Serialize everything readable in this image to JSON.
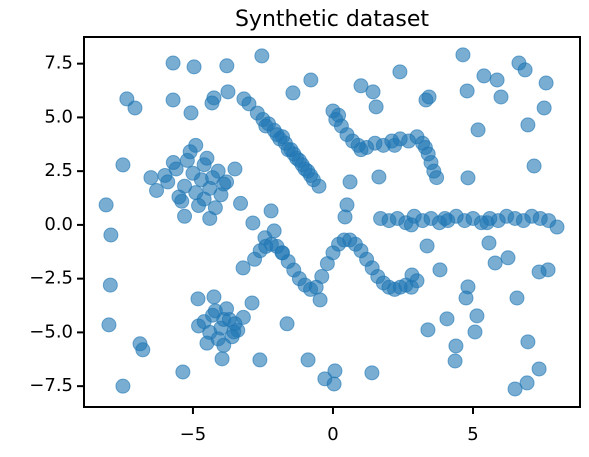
{
  "chart_data": {
    "type": "scatter",
    "title": "Synthetic dataset",
    "color": "#1f77b4",
    "x": [
      -8.1,
      -7.93,
      -7.95,
      -8.0,
      -7.5,
      -7.36,
      -7.07,
      -7.5,
      -6.89,
      -6.79,
      -5.71,
      -4.96,
      -3.79,
      -2.54,
      -5.71,
      -5.07,
      -4.32,
      -4.25,
      -3.75,
      -3.18,
      -3.0,
      -5.36,
      -4.82,
      -4.25,
      -3.96,
      -3.54,
      -2.61,
      -2.89,
      -1.82,
      -1.64,
      -0.89,
      -0.29,
      0.04,
      0.07,
      1.39,
      -0.79,
      -1.43,
      0.61,
      0.5,
      0.43,
      1.0,
      1.43,
      1.54,
      2.39,
      3.32,
      3.43,
      4.64,
      4.79,
      5.39,
      5.86,
      6.0,
      6.64,
      6.86,
      7.61,
      7.54,
      6.96,
      5.18,
      7.18,
      4.82,
      1.64,
      8.0,
      7.68,
      7.36,
      7.36,
      6.93,
      6.5,
      6.96,
      6.57,
      5.14,
      5.07,
      4.39,
      4.36,
      3.39,
      3.82,
      4.82,
      4.75,
      4.07,
      5.79,
      6.25,
      5.57,
      3.36,
      2.82,
      -2.21,
      -2.43,
      -2.1,
      -2.86,
      -3.21,
      -0.46,
      -5.9,
      -5.6,
      -5.3,
      -5.0,
      -4.7,
      -4.4,
      -4.1,
      -3.8,
      -5.5,
      -5.2,
      -4.9,
      -4.6,
      -4.3,
      -4.0,
      -5.7,
      -5.4,
      -5.1,
      -4.8,
      -4.5,
      -4.2,
      -6.3,
      -6.0,
      -3.5,
      -3.3,
      -4.9,
      -5.3,
      -4.4,
      -3.9,
      -6.5,
      -4.6,
      -4.6,
      -4.3,
      -4.0,
      -3.7,
      -3.4,
      -4.4,
      -4.1,
      -3.8,
      -3.5,
      -4.2,
      -3.9,
      -3.6,
      -4.8,
      -3.2,
      -3.9,
      -4.5,
      -2.7,
      -2.5,
      -2.3,
      -2.1,
      -1.9,
      -1.7,
      -1.5,
      -1.3,
      -1.1,
      -0.9,
      -0.7,
      -0.5,
      -2.4,
      -2.0,
      -1.6,
      -1.2,
      -0.8,
      -1.8,
      -1.4,
      -1.0,
      0.0,
      0.2,
      0.3,
      0.5,
      0.7,
      0.9,
      1.2,
      1.5,
      1.8,
      2.1,
      2.4,
      2.7,
      3.0,
      3.2,
      3.4,
      3.5,
      3.6,
      3.7,
      0.1,
      1.0,
      2.2,
      3.3,
      -2.8,
      -2.6,
      -2.4,
      -2.2,
      -2.0,
      -1.8,
      -1.6,
      -1.4,
      -1.2,
      -1.0,
      -0.8,
      -0.6,
      -0.4,
      -0.2,
      0.0,
      0.2,
      0.4,
      0.6,
      0.8,
      1.0,
      1.2,
      1.4,
      1.6,
      1.8,
      2.0,
      2.2,
      2.4,
      2.6,
      2.8,
      3.0,
      1.7,
      2.0,
      2.3,
      2.6,
      2.9,
      3.2,
      3.5,
      3.8,
      4.1,
      4.4,
      4.7,
      5.0,
      5.3,
      5.6,
      5.9,
      6.2,
      6.5,
      6.8,
      7.1,
      7.4,
      7.7,
      2.8,
      4.0,
      5.5
    ],
    "values": [
      0.93,
      -0.47,
      -2.8,
      -4.65,
      -7.5,
      5.86,
      5.44,
      2.79,
      -5.53,
      -5.81,
      7.53,
      7.35,
      7.4,
      7.86,
      5.81,
      5.21,
      5.67,
      5.91,
      6.19,
      5.86,
      5.63,
      -6.84,
      -3.44,
      -3.35,
      -6.23,
      -4.98,
      -6.28,
      -3.63,
      -1.3,
      -4.6,
      -6.28,
      -7.16,
      -7.4,
      -6.79,
      -6.88,
      6.74,
      6.14,
      2.0,
      0.93,
      0.37,
      6.47,
      6.19,
      5.49,
      7.12,
      5.81,
      5.95,
      7.91,
      6.23,
      6.93,
      6.74,
      5.95,
      7.53,
      7.21,
      6.6,
      5.44,
      4.65,
      4.42,
      2.74,
      2.19,
      2.23,
      -0.1,
      -2.09,
      -2.19,
      -6.7,
      -7.35,
      -7.63,
      -5.44,
      -3.4,
      -4.23,
      -4.98,
      -5.63,
      -6.33,
      -4.88,
      -2.09,
      -2.88,
      -3.4,
      -4.37,
      -1.77,
      -1.53,
      -0.84,
      -0.98,
      -2.33,
      0.65,
      -0.6,
      -0.28,
      0.09,
      -2.0,
      -3.49,
      2.0,
      2.6,
      1.8,
      2.4,
      2.1,
      1.7,
      2.5,
      2.0,
      1.3,
      3.0,
      1.5,
      2.8,
      2.2,
      1.4,
      2.9,
      1.1,
      3.4,
      0.9,
      3.1,
      0.8,
      1.6,
      2.3,
      2.6,
      1.0,
      3.7,
      0.4,
      0.3,
      1.9,
      2.2,
      1.2,
      -4.5,
      -4.2,
      -4.8,
      -4.4,
      -4.9,
      -5.0,
      -5.3,
      -3.9,
      -4.6,
      -4.0,
      -5.6,
      -5.2,
      -4.7,
      -4.3,
      -4.4,
      -5.5,
      5.2,
      4.9,
      4.7,
      4.4,
      4.0,
      3.8,
      3.5,
      3.1,
      2.8,
      2.5,
      2.1,
      1.8,
      4.6,
      4.2,
      3.5,
      3.0,
      2.3,
      4.1,
      3.3,
      2.6,
      5.3,
      5.1,
      4.6,
      4.2,
      3.9,
      3.7,
      3.6,
      3.8,
      3.7,
      3.9,
      4.0,
      3.9,
      4.1,
      3.8,
      3.3,
      2.9,
      2.5,
      2.2,
      4.9,
      3.5,
      3.7,
      3.6,
      -1.6,
      -1.2,
      -1.0,
      -0.9,
      -1.0,
      -1.3,
      -1.7,
      -2.1,
      -2.5,
      -2.8,
      -3.0,
      -2.9,
      -2.4,
      -1.8,
      -1.3,
      -0.9,
      -0.7,
      -0.7,
      -0.9,
      -1.2,
      -1.6,
      -2.0,
      -2.4,
      -2.7,
      -2.9,
      -3.0,
      -2.9,
      -2.8,
      -2.9,
      -2.6,
      0.3,
      0.2,
      0.3,
      0.1,
      0.4,
      0.2,
      0.3,
      0.1,
      0.2,
      0.4,
      0.2,
      0.3,
      0.1,
      0.3,
      0.2,
      0.4,
      0.3,
      0.2,
      0.4,
      0.3,
      0.2,
      0.0,
      0.3,
      0.1
    ],
    "xlim": [
      -8.89,
      8.82
    ],
    "ylim": [
      -8.47,
      8.74
    ],
    "xticks": [
      {
        "value": -5,
        "label": "−5"
      },
      0,
      5
    ],
    "yticks": [
      {
        "value": -7.5,
        "label": "−7.5"
      },
      {
        "value": -5,
        "label": "−5.0"
      },
      {
        "value": -2.5,
        "label": "−2.5"
      },
      {
        "value": 0,
        "label": "0.0"
      },
      2.5,
      {
        "value": 5,
        "label": "5.0"
      },
      7.5
    ]
  }
}
